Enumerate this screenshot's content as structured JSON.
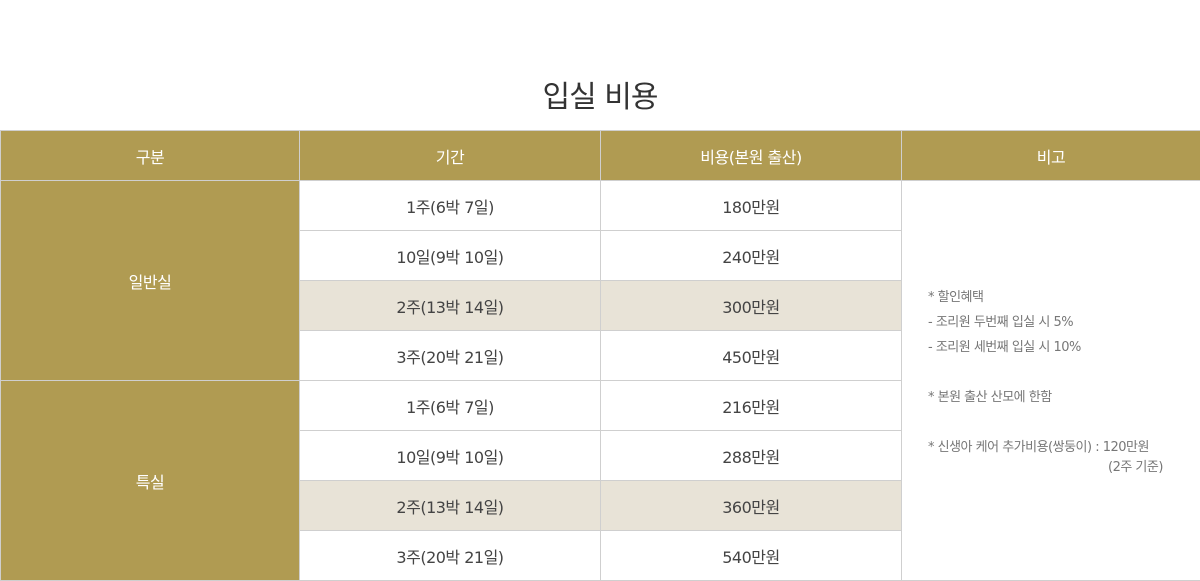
{
  "title": "입실 비용",
  "colors": {
    "header_bg": "#b09b52",
    "highlight_row": "#e8e3d7",
    "border": "#cfcfcf"
  },
  "headers": [
    "구분",
    "기간",
    "비용(본원 출산)",
    "비고"
  ],
  "groups": [
    {
      "name": "일반실",
      "rows": [
        {
          "period": "1주(6박 7일)",
          "price": "180만원",
          "highlight": false
        },
        {
          "period": "10일(9박 10일)",
          "price": "240만원",
          "highlight": false
        },
        {
          "period": "2주(13박 14일)",
          "price": "300만원",
          "highlight": true
        },
        {
          "period": "3주(20박 21일)",
          "price": "450만원",
          "highlight": false
        }
      ]
    },
    {
      "name": "특실",
      "rows": [
        {
          "period": "1주(6박 7일)",
          "price": "216만원",
          "highlight": false
        },
        {
          "period": "10일(9박 10일)",
          "price": "288만원",
          "highlight": false
        },
        {
          "period": "2주(13박 14일)",
          "price": "360만원",
          "highlight": true
        },
        {
          "period": "3주(20박 21일)",
          "price": "540만원",
          "highlight": false
        }
      ]
    }
  ],
  "notes": {
    "discount_title": "* 할인혜택",
    "discount_1": "- 조리원 두번째 입실 시 5%",
    "discount_2": "- 조리원 세번째 입실 시 10%",
    "limit": "* 본원 출산 산모에 한함",
    "twins": "* 신생아 케어 추가비용(쌍둥이) : 120만원",
    "twins_basis": "(2주 기준)"
  }
}
